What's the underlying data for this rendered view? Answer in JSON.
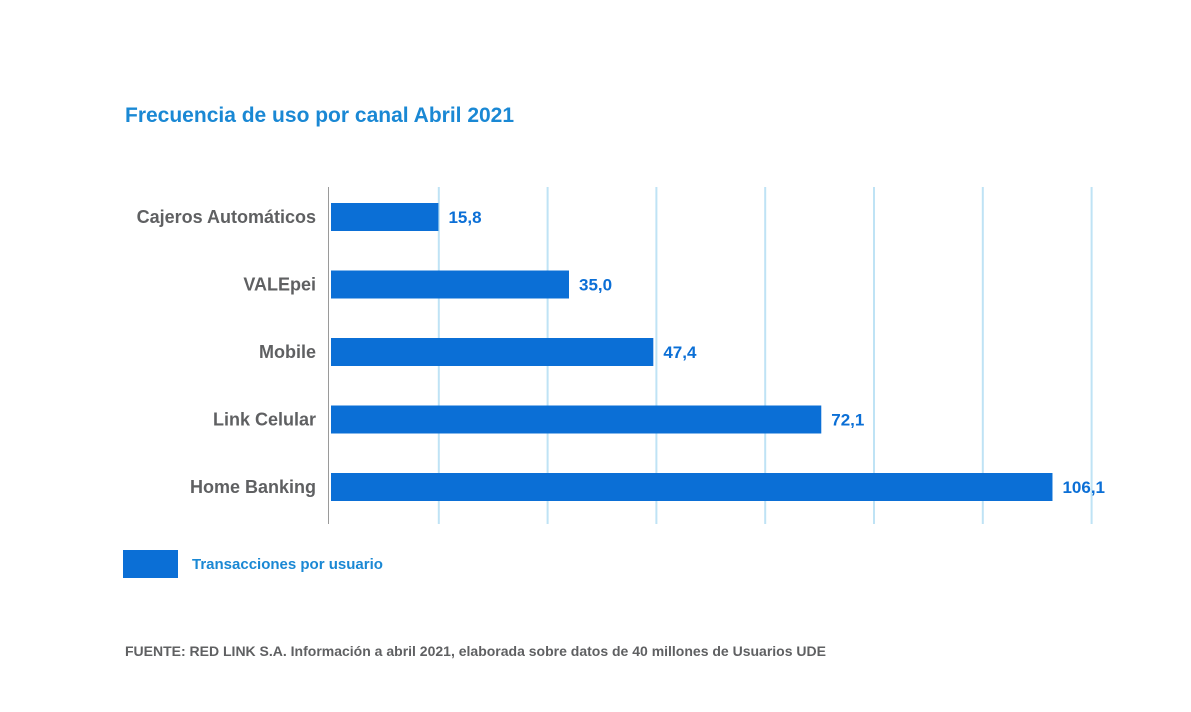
{
  "chart_data": {
    "type": "bar",
    "orientation": "horizontal",
    "title": "Frecuencia de uso por canal Abril 2021",
    "categories": [
      "Cajeros Automáticos",
      "VALEpei",
      "Mobile",
      "Link Celular",
      "Home Banking"
    ],
    "series": [
      {
        "name": "Transacciones por usuario",
        "values": [
          15.8,
          35.0,
          47.4,
          72.1,
          106.1
        ],
        "labels": [
          "15,8",
          "35,0",
          "47,4",
          "72,1",
          "106,1"
        ],
        "color": "#0b6fd6"
      }
    ],
    "xlim": [
      0,
      120
    ],
    "grid": true,
    "gridline_color": "#bfe3f5",
    "legend_position": "bottom-left",
    "xlabel": "",
    "ylabel": ""
  },
  "source": "FUENTE: RED LINK S.A. Información a abril 2021, elaborada sobre datos de 40 millones de Usuarios UDE"
}
